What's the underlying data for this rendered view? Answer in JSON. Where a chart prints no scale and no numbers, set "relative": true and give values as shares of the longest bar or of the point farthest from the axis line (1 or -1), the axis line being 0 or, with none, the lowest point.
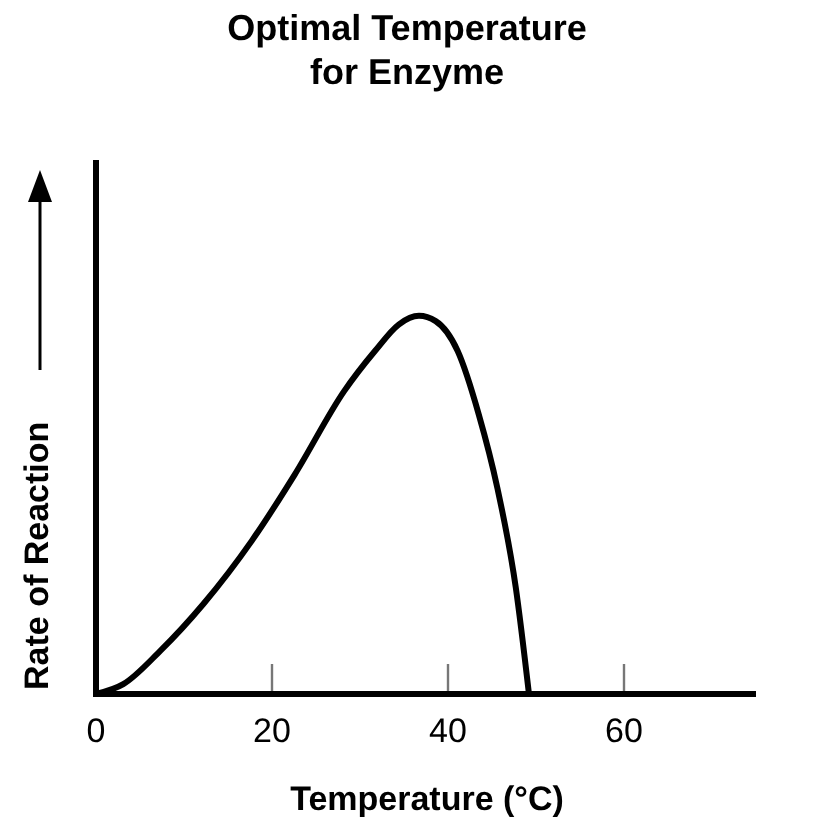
{
  "chart_data": {
    "type": "line",
    "title": "Optimal Temperature\nfor Enzyme",
    "xlabel": "Temperature (°C)",
    "ylabel": "Rate of Reaction",
    "relative": true,
    "xlim": [
      0,
      75
    ],
    "xticks": [
      0,
      20,
      40,
      60
    ],
    "grid": false,
    "marker": "none",
    "line_style": "solid",
    "series": [
      {
        "color": "#000000",
        "x": [
          0,
          3.1,
          7.3,
          12.2,
          17.7,
          22.6,
          28.2,
          31.7,
          34.4,
          36.7,
          38.6,
          41.1,
          43.5,
          45.6,
          47.7,
          49.2
        ],
        "values": [
          0,
          0.026,
          0.114,
          0.238,
          0.405,
          0.581,
          0.801,
          0.907,
          0.977,
          1,
          0.986,
          0.907,
          0.739,
          0.546,
          0.282,
          0
        ]
      }
    ]
  }
}
